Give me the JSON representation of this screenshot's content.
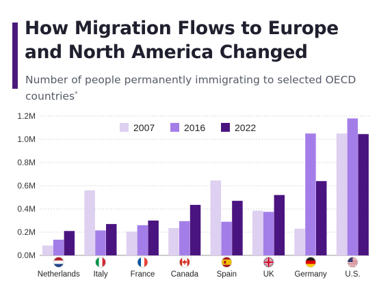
{
  "header": {
    "title": "How Migration Flows to Europe and North America Changed",
    "subtitle": "Number of people permanently immigrating to selected OECD countries",
    "subtitle_note": "*"
  },
  "colors": {
    "accent": "#4a1a7a",
    "series": [
      "#ddd0f0",
      "#a47ee8",
      "#4a1480"
    ]
  },
  "chart_data": {
    "type": "bar",
    "categories": [
      "Netherlands",
      "Italy",
      "France",
      "Canada",
      "Spain",
      "UK",
      "Germany",
      "U.S."
    ],
    "flag_icons": [
      "netherlands-flag-icon",
      "italy-flag-icon",
      "france-flag-icon",
      "canada-flag-icon",
      "spain-flag-icon",
      "uk-flag-icon",
      "germany-flag-icon",
      "us-flag-icon"
    ],
    "series": [
      {
        "name": "2007",
        "values": [
          0.085,
          0.56,
          0.205,
          0.235,
          0.645,
          0.385,
          0.23,
          1.05
        ]
      },
      {
        "name": "2016",
        "values": [
          0.135,
          0.215,
          0.26,
          0.295,
          0.29,
          0.375,
          1.05,
          1.18
        ]
      },
      {
        "name": "2022",
        "values": [
          0.21,
          0.27,
          0.3,
          0.435,
          0.47,
          0.52,
          0.64,
          1.045
        ]
      }
    ],
    "yticks": [
      "0.0M",
      "0.2M",
      "0.4M",
      "0.6M",
      "0.8M",
      "1.0M",
      "1.2M"
    ],
    "ylim": [
      0,
      1.2
    ],
    "unit": "M",
    "grid": true,
    "legend_position": "top-center"
  }
}
